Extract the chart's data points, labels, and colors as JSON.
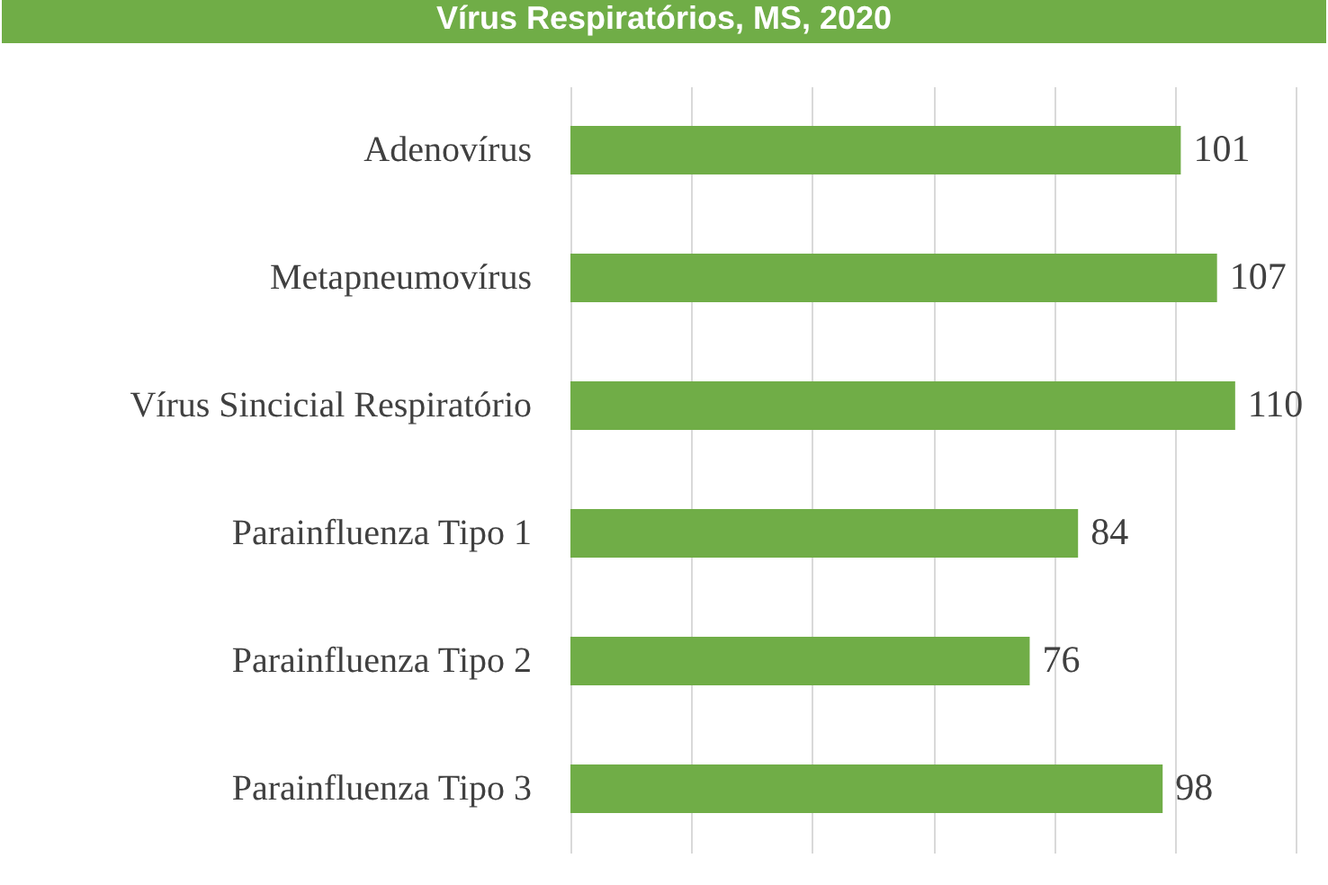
{
  "chart_data": {
    "type": "bar",
    "orientation": "horizontal",
    "title": "Vírus Respiratórios, MS, 2020",
    "categories": [
      "Adenovírus",
      "Metapneumovírus",
      "Vírus Sincicial Respiratório",
      "Parainfluenza Tipo 1",
      "Parainfluenza Tipo 2",
      "Parainfluenza Tipo 3"
    ],
    "values": [
      101,
      107,
      110,
      84,
      76,
      98
    ],
    "color": "#70ad47",
    "xlim": [
      0,
      120
    ],
    "xticks": [
      {
        "value": 0,
        "label": null
      },
      {
        "value": 20,
        "label": null
      },
      {
        "value": 40,
        "label": null
      },
      {
        "value": 60,
        "label": null
      },
      {
        "value": 80,
        "label": null
      },
      {
        "value": 100,
        "label": null
      },
      {
        "value": 120,
        "label": null
      }
    ],
    "grid": "x",
    "tick_labels": "y",
    "data_labels": true
  }
}
